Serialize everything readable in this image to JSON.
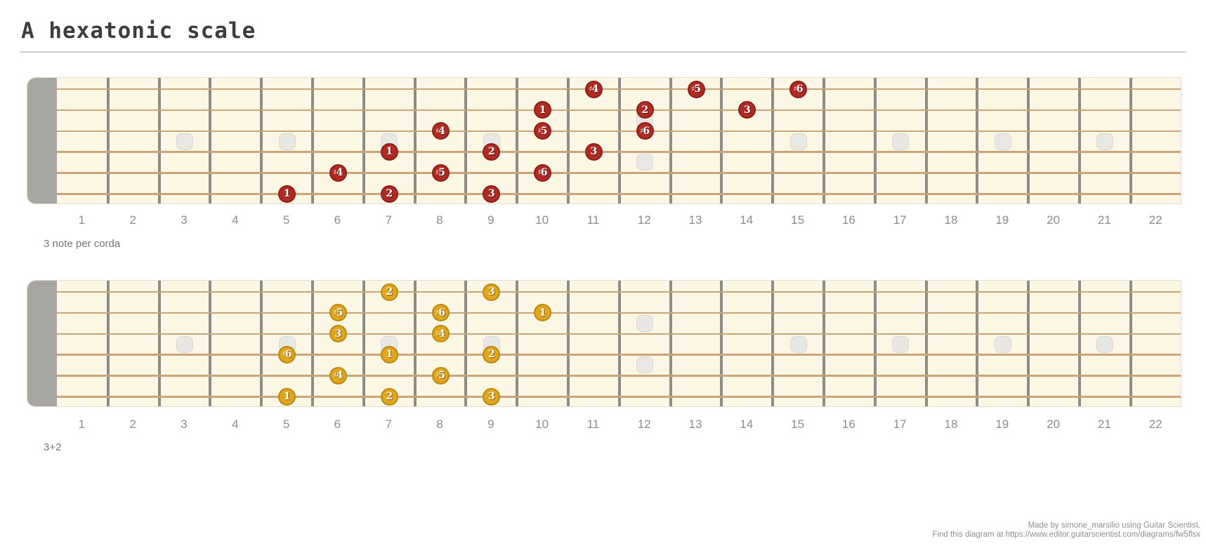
{
  "title": "A hexatonic scale",
  "fretboard": {
    "fret_count": 22,
    "string_count": 6,
    "fret_numbers": [
      "1",
      "2",
      "3",
      "4",
      "5",
      "6",
      "7",
      "8",
      "9",
      "10",
      "11",
      "12",
      "13",
      "14",
      "15",
      "16",
      "17",
      "18",
      "19",
      "20",
      "21",
      "22"
    ],
    "inlay_frets_single": [
      3,
      5,
      7,
      9,
      15,
      17,
      19,
      21
    ],
    "inlay_fret_double": 12
  },
  "colors": {
    "red_dot": "#b12b25",
    "gold_dot": "#e2a51f",
    "board": "#fcf6e5",
    "string": "#cba47a",
    "fret_wire": "#8e8c87",
    "nut": "#a8a6a3",
    "inlay": "#e8e7e3"
  },
  "diagrams": [
    {
      "caption": "3 note per corda",
      "dot_style": "red",
      "dots": [
        {
          "fret": 5,
          "string": 6,
          "label": "1"
        },
        {
          "fret": 6,
          "string": 5,
          "label": "♯4"
        },
        {
          "fret": 7,
          "string": 4,
          "label": "1"
        },
        {
          "fret": 7,
          "string": 6,
          "label": "2"
        },
        {
          "fret": 8,
          "string": 3,
          "label": "♯4"
        },
        {
          "fret": 8,
          "string": 5,
          "label": "♯5"
        },
        {
          "fret": 9,
          "string": 4,
          "label": "2"
        },
        {
          "fret": 9,
          "string": 6,
          "label": "3"
        },
        {
          "fret": 10,
          "string": 2,
          "label": "1"
        },
        {
          "fret": 10,
          "string": 3,
          "label": "♯5"
        },
        {
          "fret": 10,
          "string": 5,
          "label": "♯6"
        },
        {
          "fret": 11,
          "string": 1,
          "label": "♯4"
        },
        {
          "fret": 11,
          "string": 4,
          "label": "3"
        },
        {
          "fret": 12,
          "string": 2,
          "label": "2"
        },
        {
          "fret": 12,
          "string": 3,
          "label": "♯6"
        },
        {
          "fret": 13,
          "string": 1,
          "label": "♯5"
        },
        {
          "fret": 14,
          "string": 2,
          "label": "3"
        },
        {
          "fret": 15,
          "string": 1,
          "label": "♯6"
        }
      ]
    },
    {
      "caption": "3+2",
      "dot_style": "gold",
      "dots": [
        {
          "fret": 5,
          "string": 4,
          "label": "♯6"
        },
        {
          "fret": 5,
          "string": 6,
          "label": "1"
        },
        {
          "fret": 6,
          "string": 2,
          "label": "♯5"
        },
        {
          "fret": 6,
          "string": 3,
          "label": "3"
        },
        {
          "fret": 6,
          "string": 5,
          "label": "♯4"
        },
        {
          "fret": 7,
          "string": 1,
          "label": "2"
        },
        {
          "fret": 7,
          "string": 4,
          "label": "1"
        },
        {
          "fret": 7,
          "string": 6,
          "label": "2"
        },
        {
          "fret": 8,
          "string": 2,
          "label": "♯6"
        },
        {
          "fret": 8,
          "string": 3,
          "label": "♯4"
        },
        {
          "fret": 8,
          "string": 5,
          "label": "♯5"
        },
        {
          "fret": 9,
          "string": 1,
          "label": "3"
        },
        {
          "fret": 9,
          "string": 4,
          "label": "2"
        },
        {
          "fret": 9,
          "string": 6,
          "label": "3"
        },
        {
          "fret": 10,
          "string": 2,
          "label": "1"
        }
      ]
    }
  ],
  "footer": {
    "line1": "Made by simone_marsilio using Guitar Scientist.",
    "line2": "Find this diagram at https://www.editor.guitarscientist.com/diagrams/fw5flsx"
  }
}
